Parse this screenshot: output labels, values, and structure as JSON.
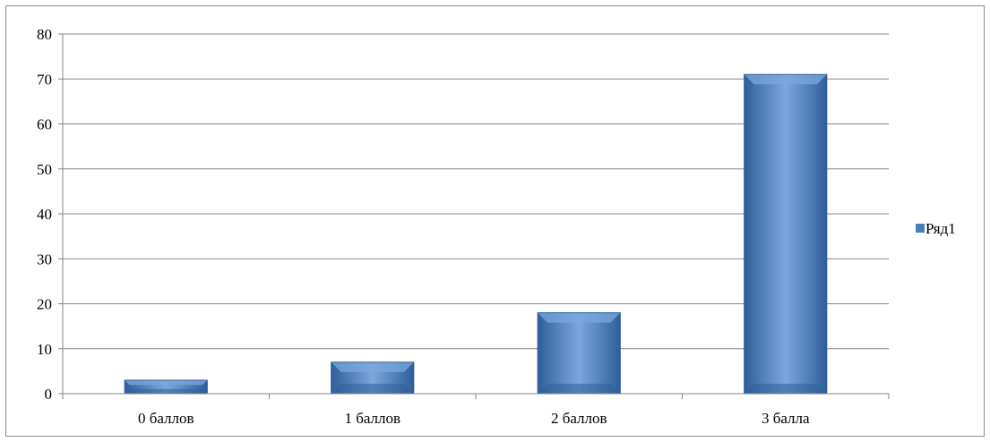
{
  "chart_data": {
    "type": "bar",
    "categories": [
      "0 баллов",
      "1 баллов",
      "2 баллов",
      "3 балла"
    ],
    "series": [
      {
        "name": "Ряд1",
        "values": [
          3,
          7,
          18,
          71
        ]
      }
    ],
    "title": "",
    "xlabel": "",
    "ylabel": "",
    "ylim": [
      0,
      80
    ],
    "yticks": [
      "0",
      "10",
      "20",
      "30",
      "40",
      "50",
      "60",
      "70",
      "80"
    ],
    "grid": true,
    "legend_position": "right",
    "colors": {
      "bar": "#4a7ebb",
      "bar_light": "#7ba7dd",
      "bar_dark": "#2f5f99",
      "grid": "#868686",
      "axis": "#868686"
    }
  }
}
